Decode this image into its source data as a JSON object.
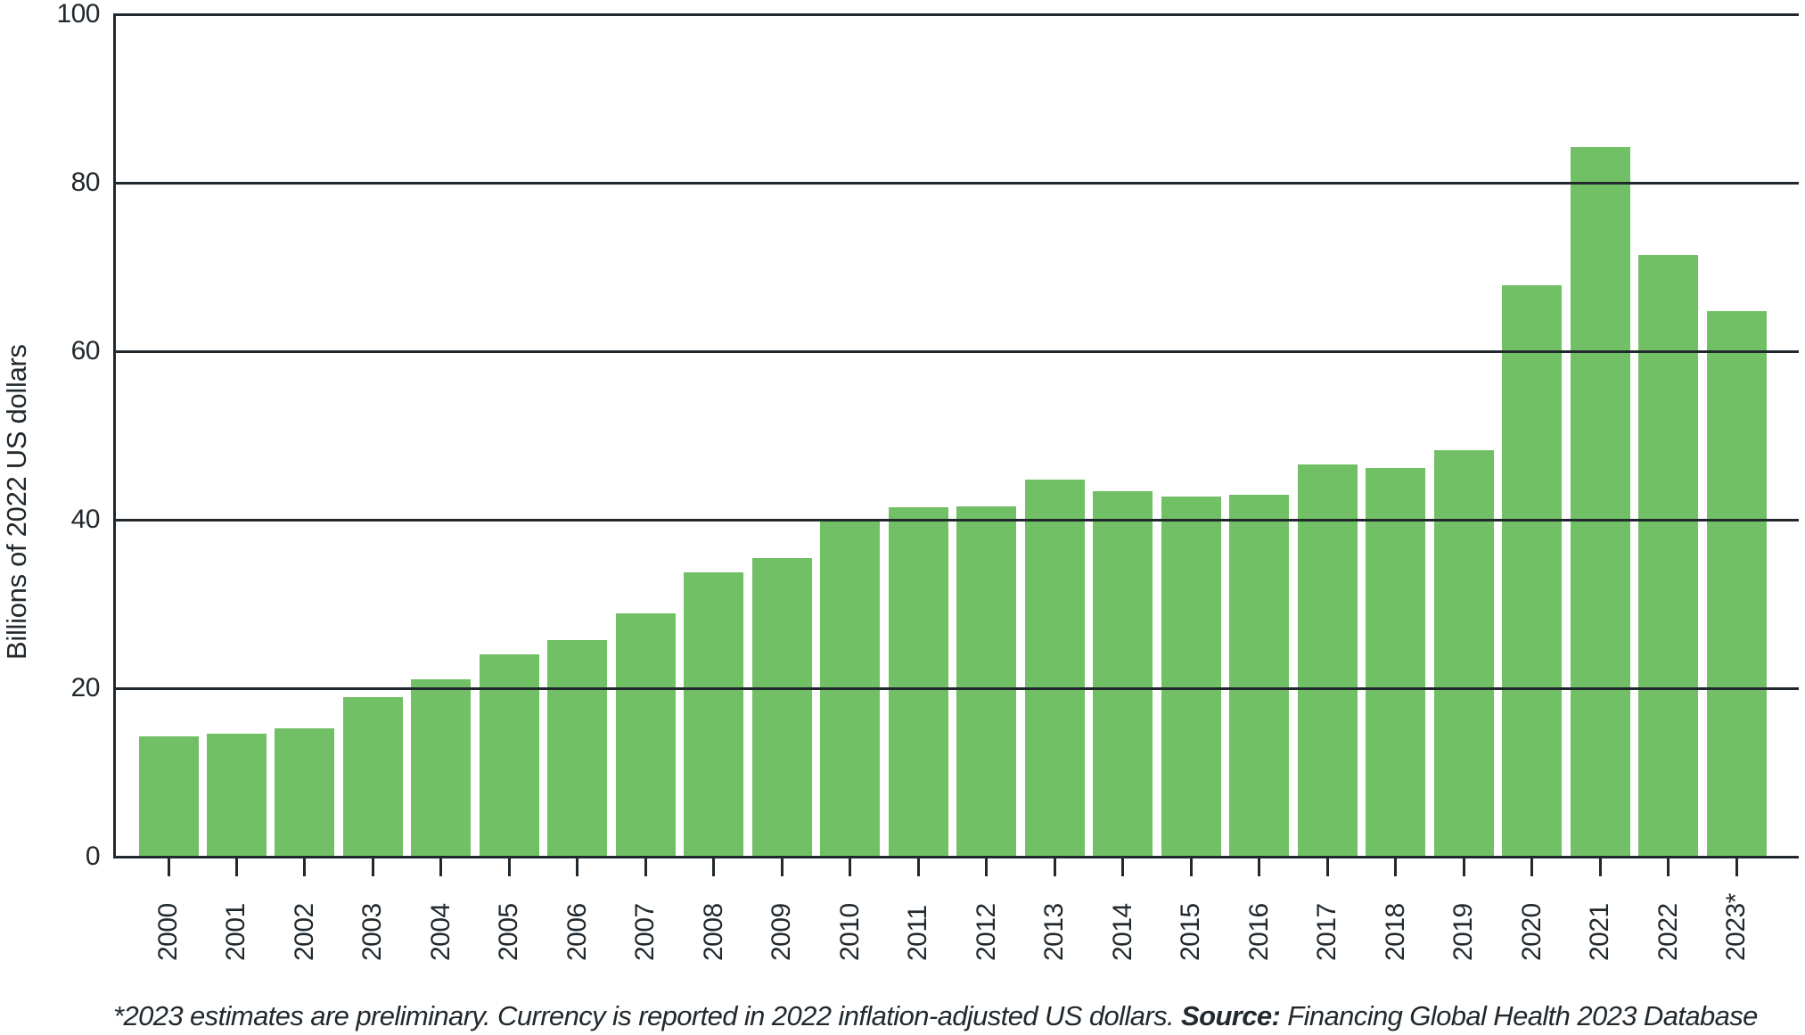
{
  "chart_data": {
    "type": "bar",
    "title": "",
    "categories": [
      "2000",
      "2001",
      "2002",
      "2003",
      "2004",
      "2005",
      "2006",
      "2007",
      "2008",
      "2009",
      "2010",
      "2011",
      "2012",
      "2013",
      "2014",
      "2015",
      "2016",
      "2017",
      "2018",
      "2019",
      "2020",
      "2021",
      "2022",
      "2023*"
    ],
    "values": [
      14.3,
      14.6,
      15.2,
      18.9,
      21.1,
      24.0,
      25.7,
      28.9,
      33.8,
      35.4,
      39.9,
      41.5,
      41.6,
      44.8,
      43.4,
      42.7,
      43.0,
      46.6,
      46.1,
      48.3,
      67.8,
      84.2,
      71.4,
      64.8
    ],
    "ylabel": "Billions of 2022 US dollars",
    "xlabel": "",
    "ylim": [
      0,
      100
    ],
    "yticks": [
      0,
      20,
      40,
      60,
      80,
      100
    ],
    "grid": "horizontal",
    "legend": "none",
    "bar_color": "#72c065",
    "axis_color": "#21292e",
    "footnote": {
      "text": "*2023 estimates are preliminary. Currency is reported in 2022 inflation-adjusted US dollars. ",
      "source_label": "Source:",
      "source_text": " Financing Global Health 2023 Database"
    }
  }
}
